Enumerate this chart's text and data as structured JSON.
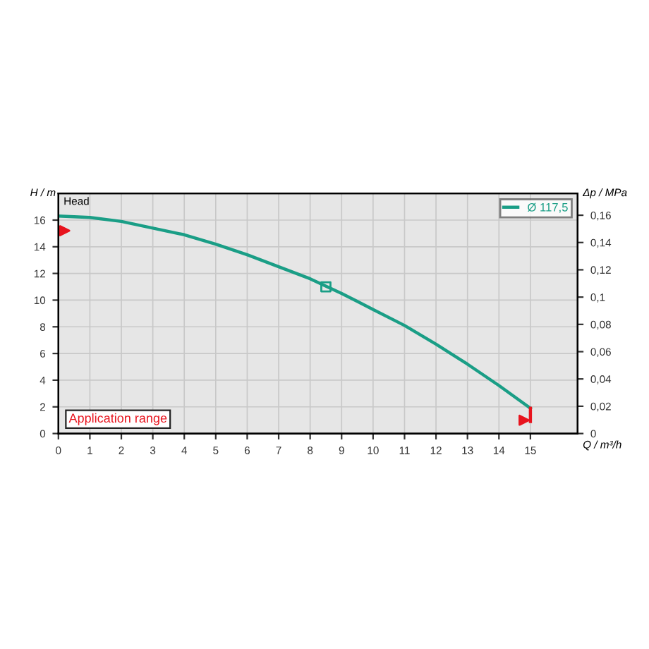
{
  "chart_data": {
    "type": "line",
    "xlabel": "Q / m³/h",
    "ylabel": "H / m",
    "y2label": "Δp / MPa",
    "title": "Head",
    "x": [
      0,
      1,
      2,
      3,
      4,
      5,
      6,
      7,
      8,
      9,
      10,
      11,
      12,
      13,
      14,
      15
    ],
    "series": [
      {
        "name": "Ø 117,5",
        "color": "#1a9e86",
        "marker": "none",
        "values": [
          16.3,
          16.2,
          15.9,
          15.4,
          14.9,
          14.2,
          13.4,
          12.5,
          11.6,
          10.5,
          9.3,
          8.1,
          6.7,
          5.2,
          3.6,
          1.9
        ]
      },
      {
        "type": "scatter",
        "color": "#1a9e86",
        "marker": "square",
        "x": [
          8.5
        ],
        "values": [
          11.0
        ]
      },
      {
        "type": "scatter",
        "color": "#e8141e",
        "marker": "triangle",
        "x": [
          0.2,
          14.8
        ],
        "values": [
          15.2,
          1.0
        ]
      },
      {
        "type": "line",
        "color": "#e8141e",
        "marker": "none",
        "x": [
          15,
          15
        ],
        "values": [
          0.9,
          1.9
        ]
      }
    ],
    "xlim": [
      0,
      16.5
    ],
    "xticks": [
      0,
      1,
      2,
      3,
      4,
      5,
      6,
      7,
      8,
      9,
      10,
      11,
      12,
      13,
      14,
      15
    ],
    "ylim": [
      0,
      18
    ],
    "yticks": [
      0,
      2,
      4,
      6,
      8,
      10,
      12,
      14,
      16
    ],
    "y2lim": [
      0,
      0.176
    ],
    "y2ticks": [
      {
        "value": 0,
        "label": "0"
      },
      {
        "value": 0.02,
        "label": "0,02"
      },
      {
        "value": 0.04,
        "label": "0,04"
      },
      {
        "value": 0.06,
        "label": "0,06"
      },
      {
        "value": 0.08,
        "label": "0,08"
      },
      {
        "value": 0.1,
        "label": "0,1"
      },
      {
        "value": 0.12,
        "label": "0,12"
      },
      {
        "value": 0.14,
        "label": "0,14"
      },
      {
        "value": 0.16,
        "label": "0,16"
      }
    ],
    "grid": true,
    "legend": "top right",
    "annotations": [
      "Application range"
    ]
  }
}
